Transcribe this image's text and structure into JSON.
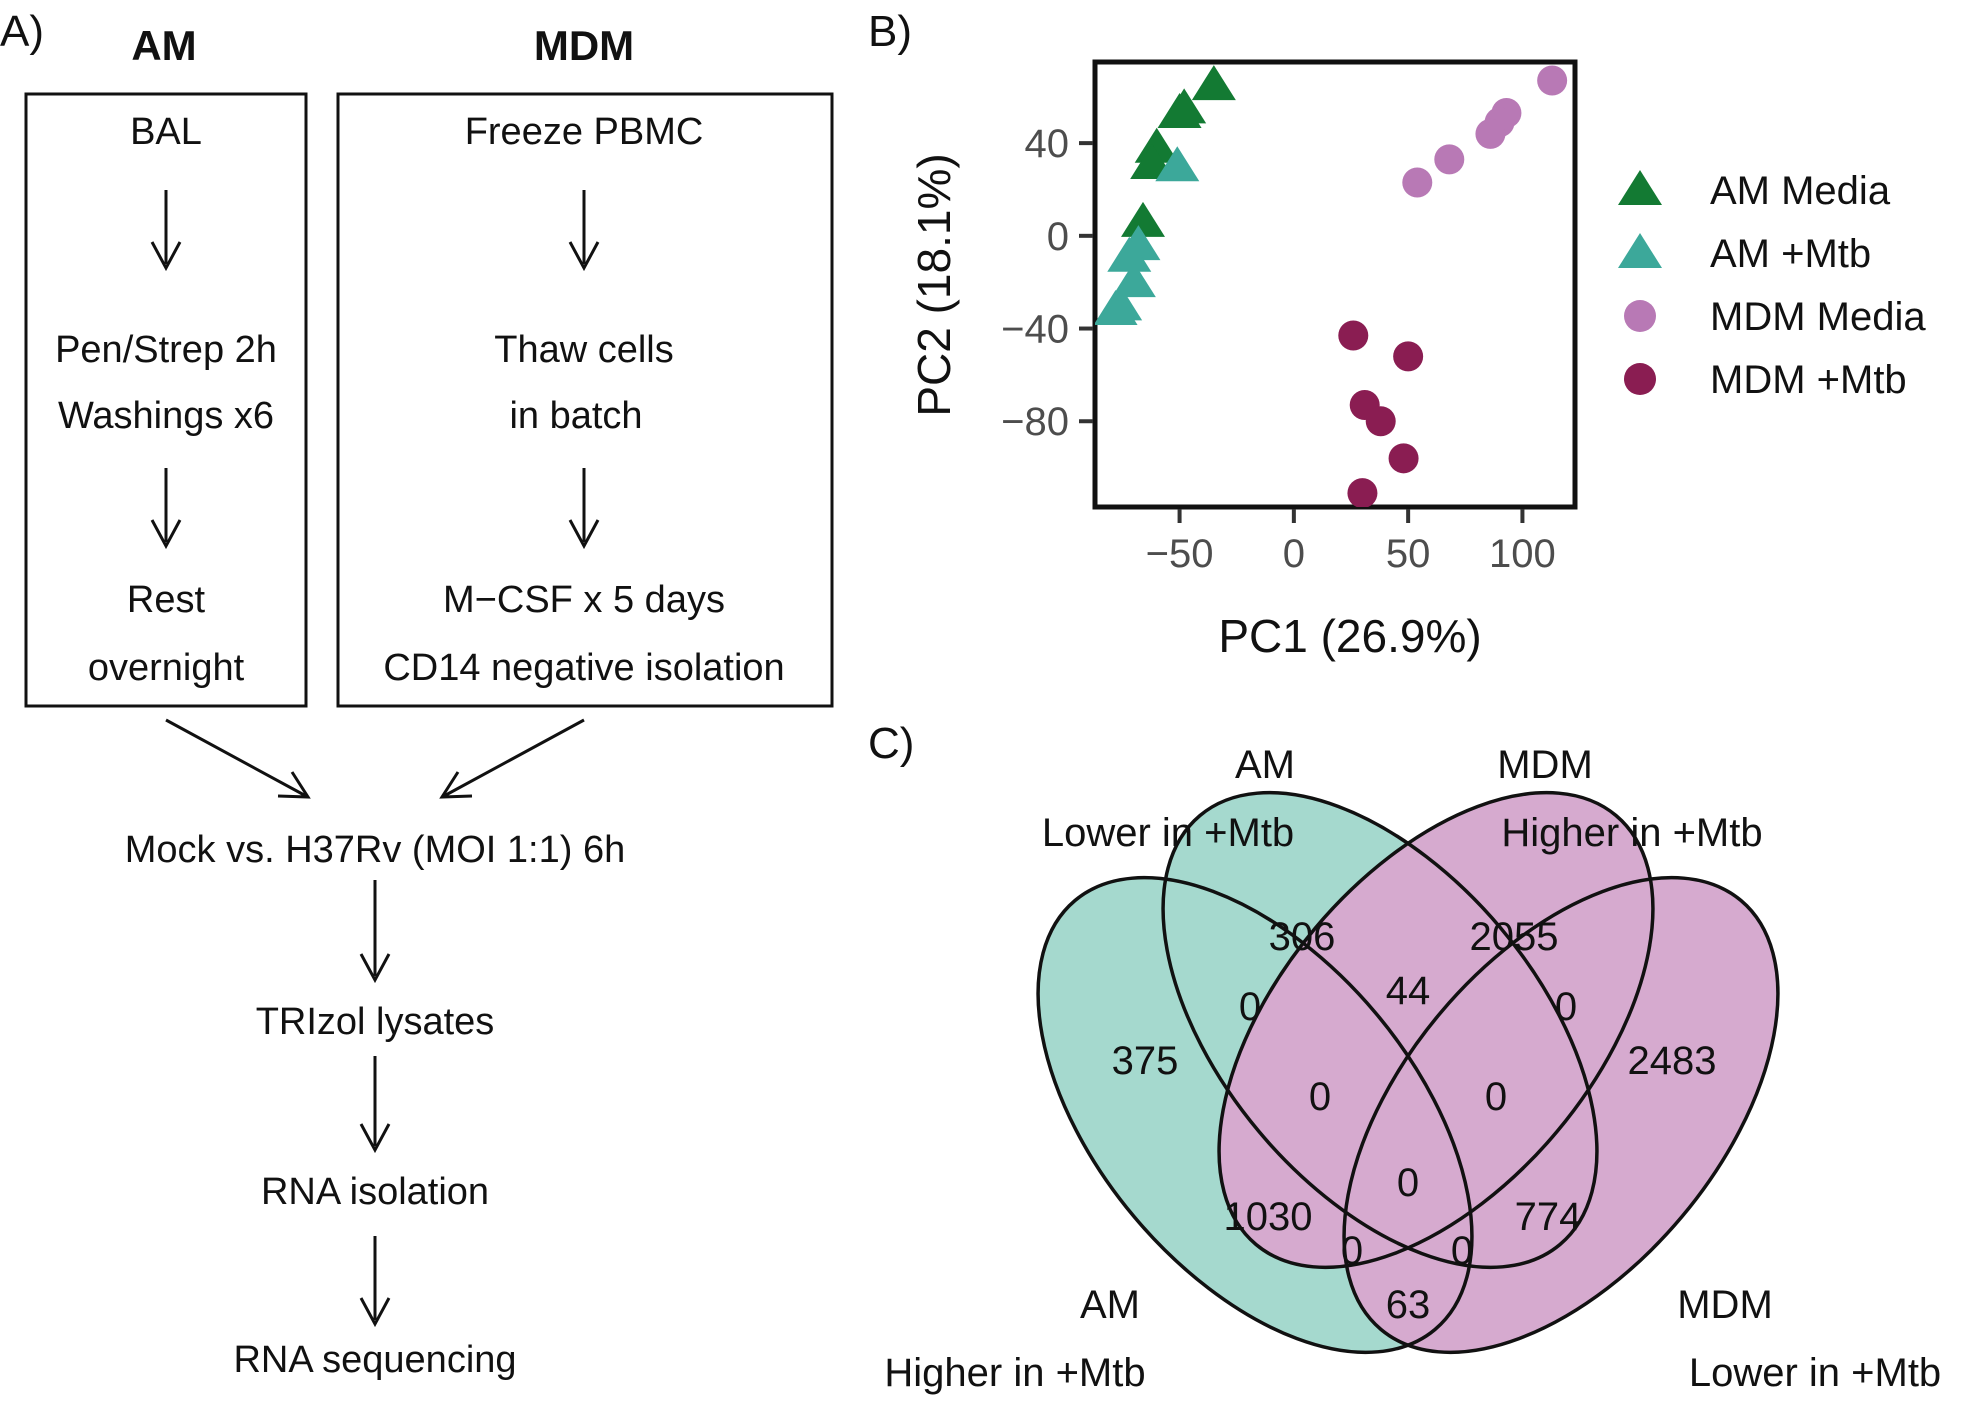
{
  "panel_a": {
    "label": "A)",
    "am": {
      "header": "AM",
      "steps": [
        [
          "BAL"
        ],
        [
          "Pen/Strep 2h",
          "Washings x6"
        ],
        [
          "Rest",
          "overnight"
        ]
      ]
    },
    "mdm": {
      "header": "MDM",
      "steps": [
        [
          "Freeze PBMC"
        ],
        [
          "Thaw cells",
          "in batch"
        ],
        [
          "M−CSF x 5 days",
          "CD14 negative isolation"
        ]
      ]
    },
    "shared_steps": [
      "Mock vs. H37Rv (MOI 1:1) 6h",
      "TRIzol lysates",
      "RNA isolation",
      "RNA sequencing"
    ]
  },
  "panel_b": {
    "label": "B)",
    "chart_data": {
      "type": "scatter",
      "xlabel": "PC1 (26.9%)",
      "ylabel": "PC2 (18.1%)",
      "xlim": [
        -87,
        123
      ],
      "ylim": [
        -117,
        75
      ],
      "x_ticks": [
        -50,
        0,
        50,
        100
      ],
      "x_tick_labels": [
        "−50",
        "0",
        "50",
        "100"
      ],
      "y_ticks": [
        40,
        0,
        -40,
        -80
      ],
      "y_tick_labels": [
        "40",
        "0",
        "−40",
        "−80"
      ],
      "grid": false,
      "legend_position": "right",
      "series": [
        {
          "name": "AM Media",
          "marker": "triangle",
          "color": "#137a33",
          "points": [
            [
              -35,
              65
            ],
            [
              -48,
              55
            ],
            [
              -50,
              53
            ],
            [
              -60,
              38
            ],
            [
              -62,
              31
            ],
            [
              -66,
              6
            ]
          ]
        },
        {
          "name": "AM +Mtb",
          "marker": "triangle",
          "color": "#3ca89a",
          "points": [
            [
              -51,
              30
            ],
            [
              -68,
              -4
            ],
            [
              -72,
              -9
            ],
            [
              -70,
              -20
            ],
            [
              -76,
              -30
            ],
            [
              -78,
              -32
            ]
          ]
        },
        {
          "name": "MDM Media",
          "marker": "circle",
          "color": "#b879b5",
          "points": [
            [
              113,
              67
            ],
            [
              93,
              53
            ],
            [
              90,
              49
            ],
            [
              86,
              44
            ],
            [
              68,
              33
            ],
            [
              54,
              23
            ]
          ]
        },
        {
          "name": "MDM +Mtb",
          "marker": "circle",
          "color": "#8a1d52",
          "points": [
            [
              26,
              -43
            ],
            [
              50,
              -52
            ],
            [
              31,
              -73
            ],
            [
              38,
              -80
            ],
            [
              48,
              -96
            ],
            [
              30,
              -111
            ]
          ]
        }
      ]
    }
  },
  "panel_c": {
    "label": "C)",
    "sets": [
      {
        "name": "AM",
        "desc": "Higher in +Mtb",
        "color": "#8fd0c2"
      },
      {
        "name": "AM",
        "desc": "Lower in +Mtb",
        "color": "#8fd0c2"
      },
      {
        "name": "MDM",
        "desc": "Higher in +Mtb",
        "color": "#cc96c4"
      },
      {
        "name": "MDM",
        "desc": "Lower in +Mtb",
        "color": "#cc96c4"
      }
    ],
    "region_counts": {
      "am_higher_only": "375",
      "am_lower_only": "306",
      "mdm_higher_only": "2055",
      "mdm_lower_only": "2483",
      "am_higher_am_lower": "0",
      "am_lower_mdm_higher": "44",
      "mdm_higher_mdm_lower": "0",
      "am_higher_am_lower_mdm_higher": "0",
      "am_lower_mdm_higher_mdm_lower": "0",
      "am_higher_mdm_higher": "1030",
      "am_lower_mdm_lower": "774",
      "all_four": "0",
      "am_higher_am_lower_mdm_lower": "0",
      "am_higher_mdm_higher_mdm_lower": "0",
      "am_higher_mdm_lower": "63"
    }
  }
}
